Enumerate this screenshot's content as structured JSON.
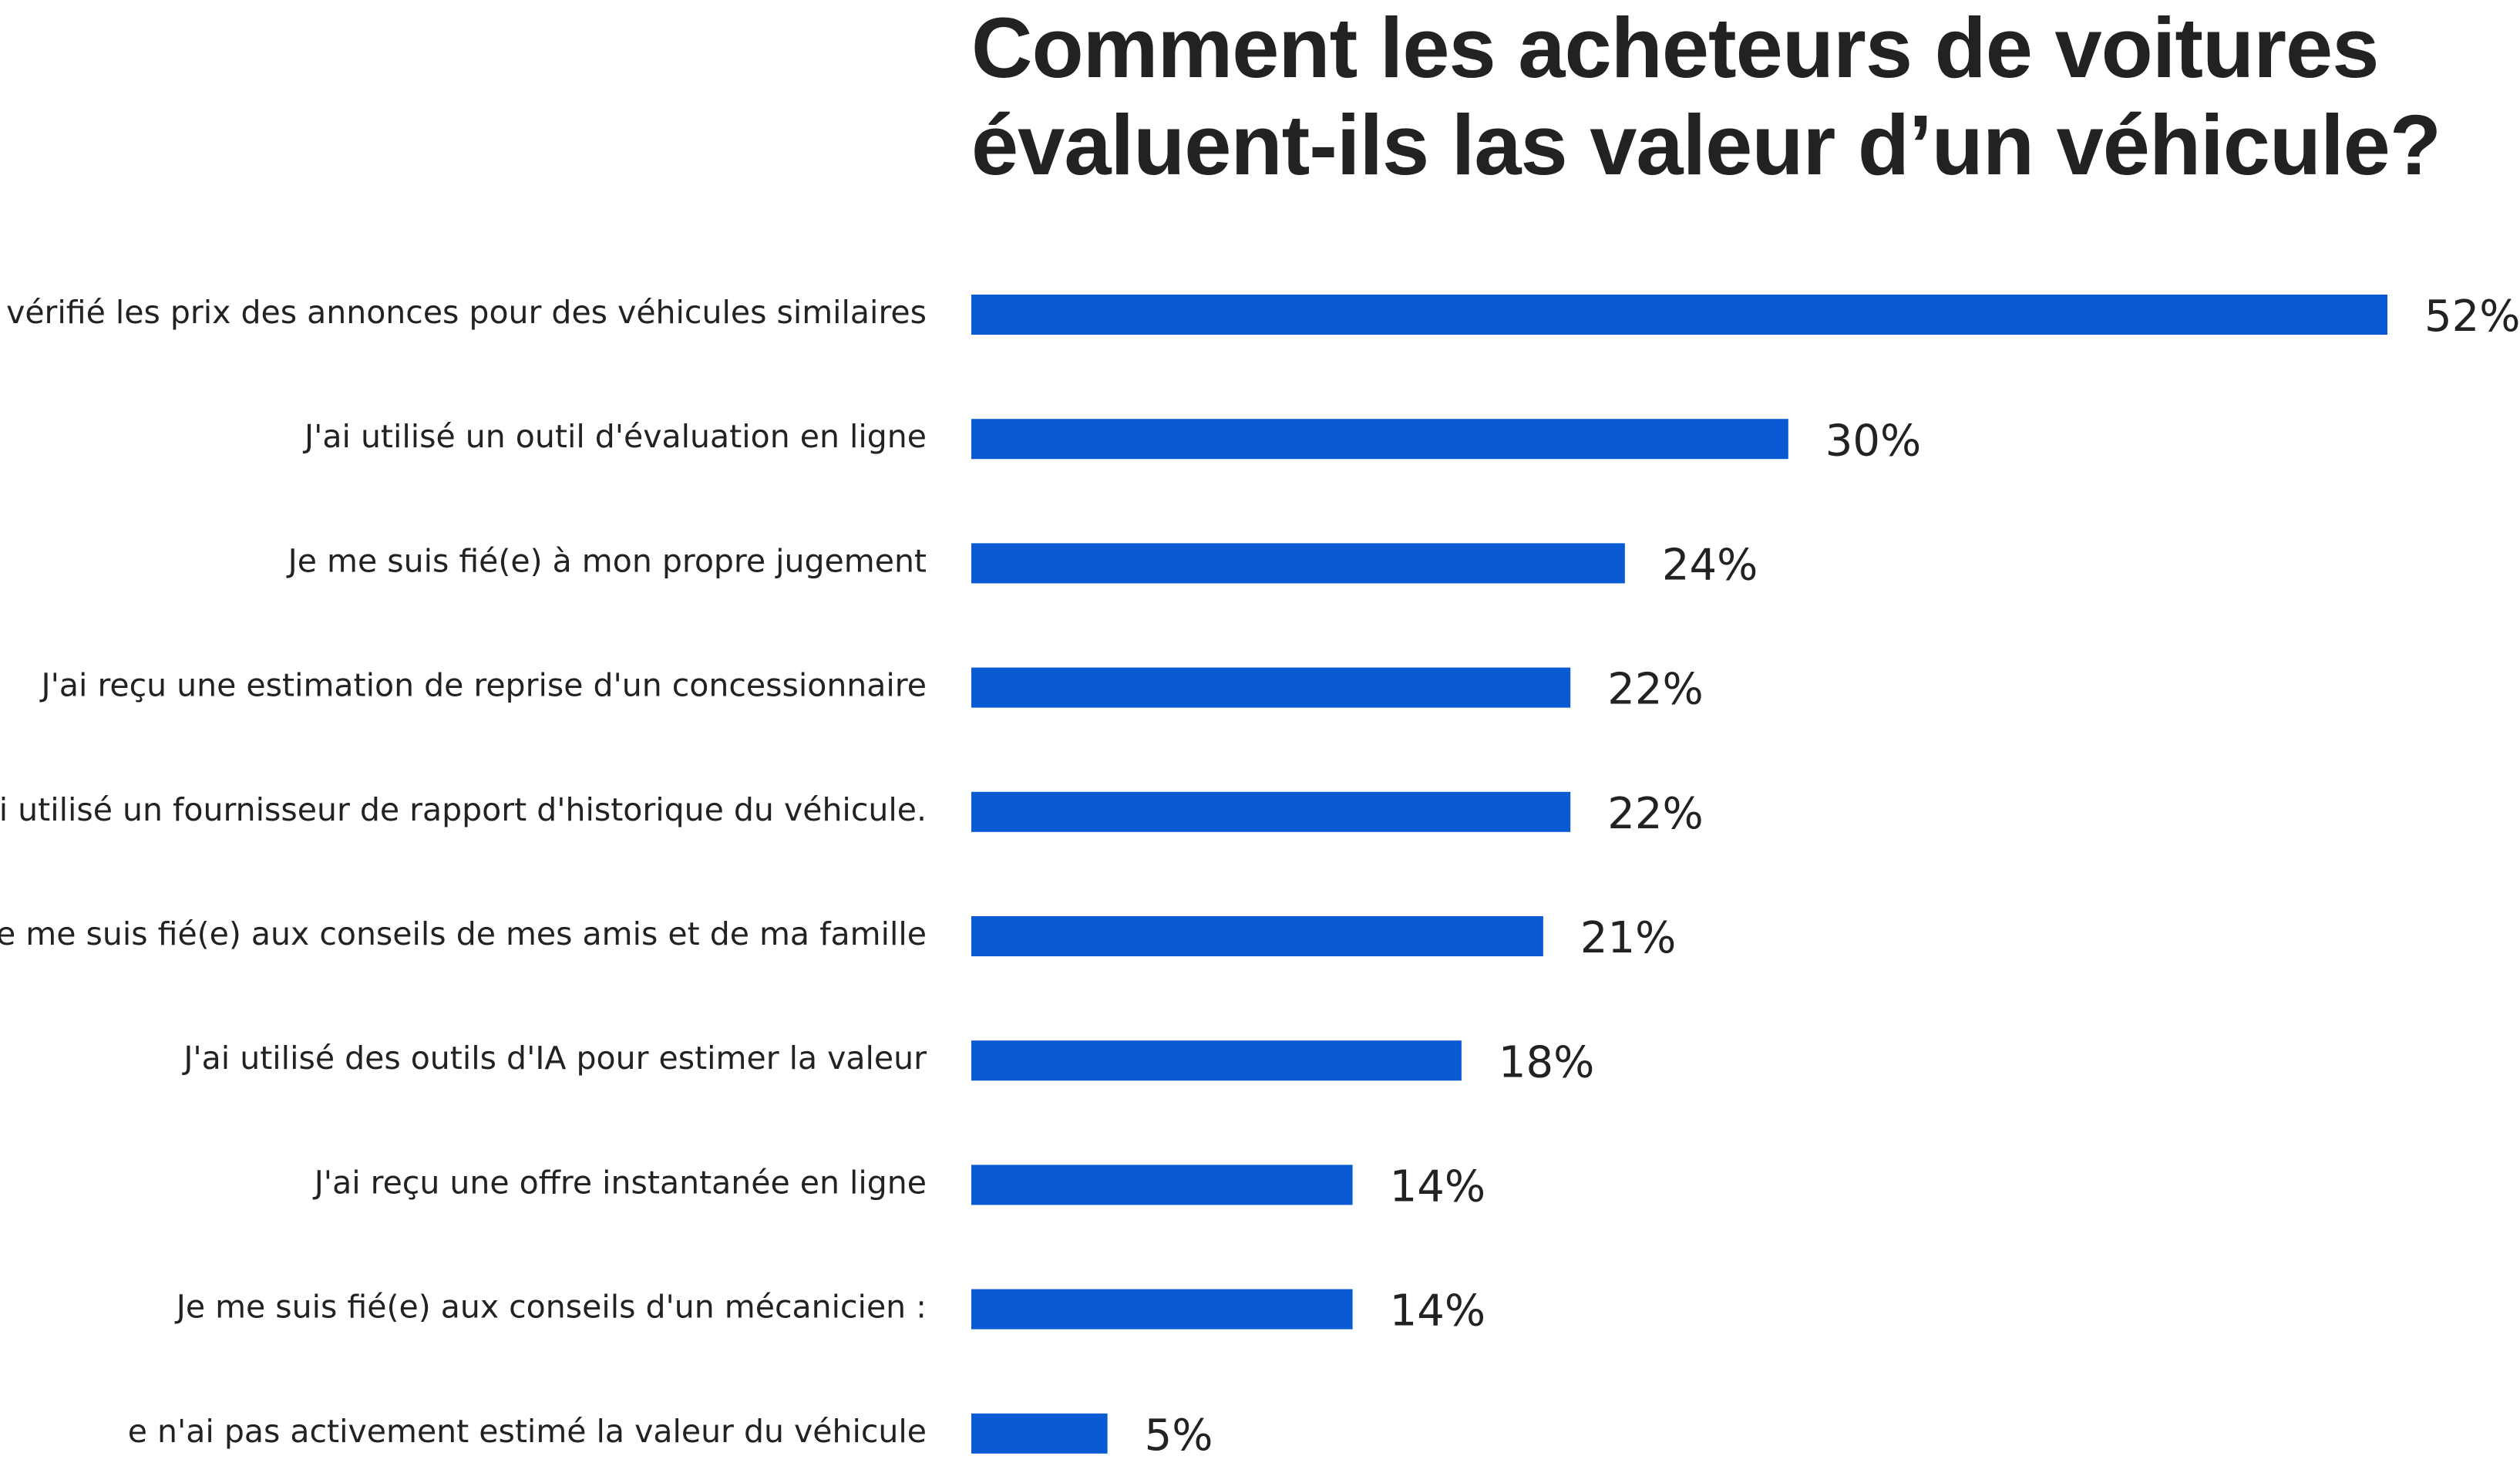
{
  "chart_data": {
    "type": "bar",
    "orientation": "horizontal",
    "title": "Comment les acheteurs de voitures évaluent-ils las valeur d’un véhicule?",
    "categories": [
      "J'ai vérifié les prix des annonces pour des véhicules similaires",
      "J'ai utilisé un outil d'évaluation en ligne",
      "Je me suis fié(e) à mon propre jugement",
      "J'ai reçu une estimation de reprise d'un concessionnaire",
      "J'ai utilisé un fournisseur de rapport d'historique du véhicule.",
      "Je me suis fié(e) aux conseils de mes amis et de ma famille",
      "J'ai utilisé des outils d'IA pour estimer la valeur",
      "J'ai reçu une offre instantanée en ligne",
      "Je me suis fié(e) aux conseils d'un mécanicien :",
      "e n'ai pas activement estimé la valeur du véhicule"
    ],
    "values": [
      52,
      30,
      24,
      22,
      22,
      21,
      18,
      14,
      14,
      5
    ],
    "value_labels": [
      "52%",
      "30%",
      "24%",
      "22%",
      "22%",
      "21%",
      "18%",
      "14%",
      "14%",
      "5%"
    ],
    "unit": "%",
    "bar_color": "#0a5bd3",
    "text_color": "#222222",
    "grid": false,
    "legend": "none"
  }
}
